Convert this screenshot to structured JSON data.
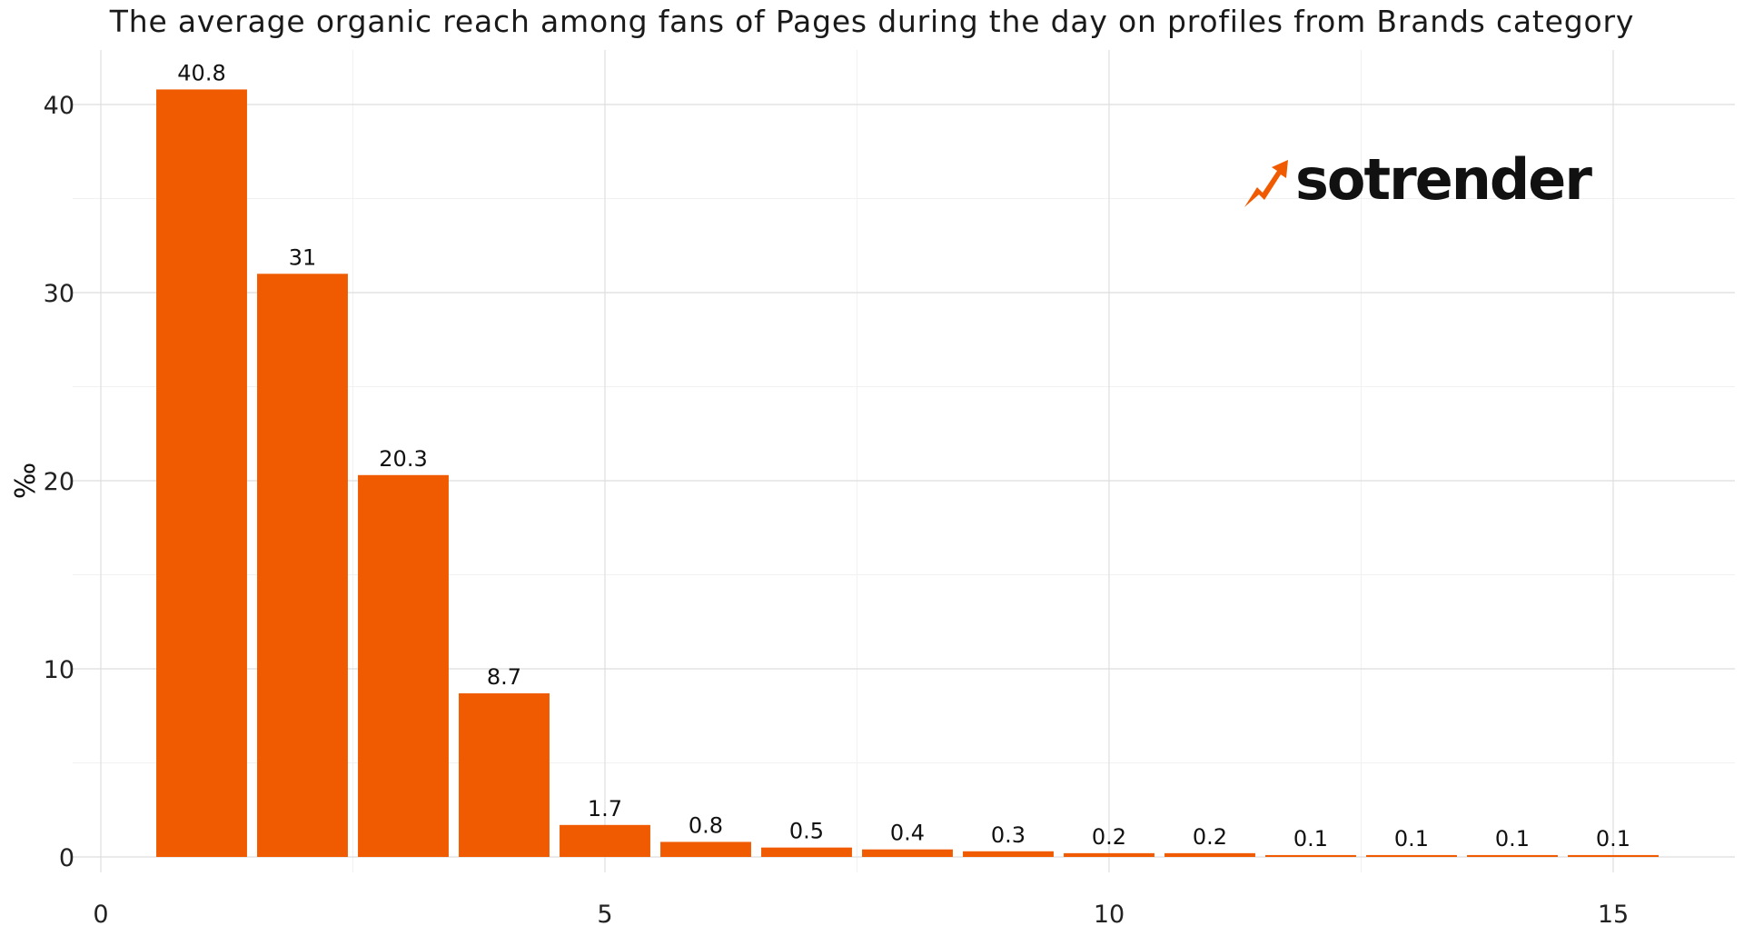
{
  "colors": {
    "bar": "#f05a00",
    "background": "#ffffff",
    "logo_accent": "#f05a00"
  },
  "logo": {
    "icon": "lightning-arrow-icon",
    "text": "sotrender"
  },
  "chart_data": {
    "type": "bar",
    "title": "The average organic reach among fans of Pages during the day on profiles from Brands category",
    "xlabel": "",
    "ylabel": "‰",
    "xlim": [
      0,
      16
    ],
    "ylim": [
      0,
      43
    ],
    "x_ticks": [
      0,
      5,
      10,
      15
    ],
    "y_ticks": [
      0,
      10,
      20,
      30,
      40
    ],
    "grid": true,
    "x": [
      1,
      2,
      3,
      4,
      5,
      6,
      7,
      8,
      9,
      10,
      11,
      12,
      13,
      14,
      15
    ],
    "values": [
      40.8,
      31,
      20.3,
      8.7,
      1.7,
      0.8,
      0.5,
      0.4,
      0.3,
      0.2,
      0.2,
      0.1,
      0.1,
      0.1,
      0.1
    ],
    "data_labels": [
      "40.8",
      "31",
      "20.3",
      "8.7",
      "1.7",
      "0.8",
      "0.5",
      "0.4",
      "0.3",
      "0.2",
      "0.2",
      "0.1",
      "0.1",
      "0.1",
      "0.1"
    ]
  }
}
